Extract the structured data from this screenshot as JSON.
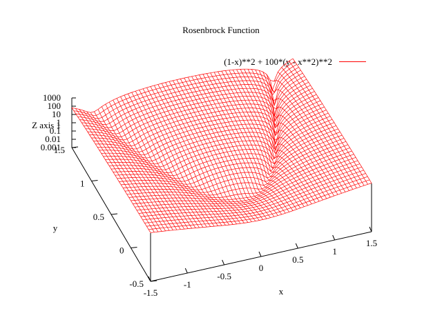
{
  "chart_data": {
    "type": "surface",
    "title": "Rosenbrock Function",
    "function": "(1-x)**2 + 100*(y - x**2)**2",
    "legend": {
      "label": "(1-x)**2 + 100*(y - x**2)**2",
      "position": "top-right"
    },
    "x_axis": {
      "label": "x",
      "range": [
        -1.5,
        1.5
      ],
      "ticks": [
        "-1.5",
        "-1",
        "-0.5",
        "0",
        "0.5",
        "1",
        "1.5"
      ]
    },
    "y_axis": {
      "label": "y",
      "range": [
        -0.5,
        1.5
      ],
      "ticks": [
        "-0.5",
        "0",
        "0.5",
        "1",
        "1.5"
      ]
    },
    "z_axis": {
      "label": "Z axis 1",
      "scale": "log",
      "range": [
        0.001,
        1000
      ],
      "ticks": [
        "1000",
        "100",
        "10",
        "1",
        "0.1",
        "0.01",
        "0.001"
      ]
    },
    "grid": false,
    "mesh": {
      "x_samples": 60,
      "y_samples": 41
    },
    "color": "#ff0000"
  }
}
